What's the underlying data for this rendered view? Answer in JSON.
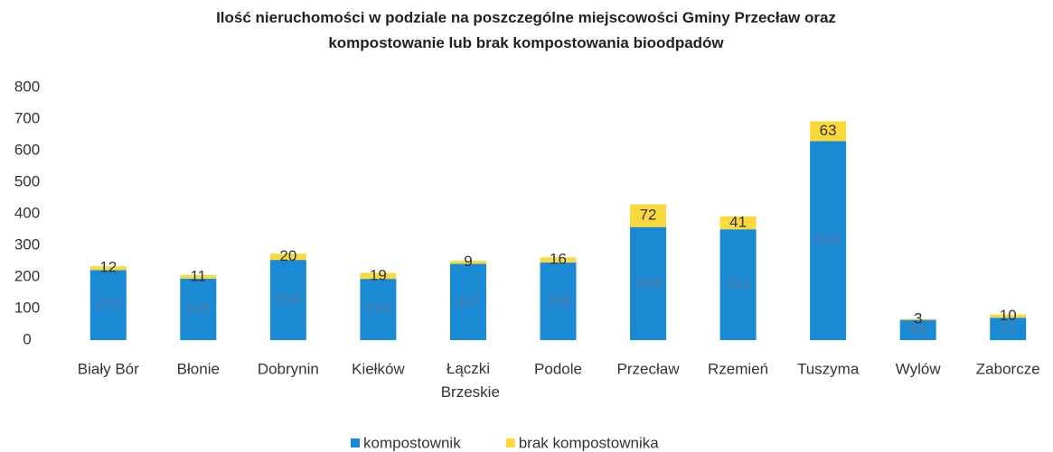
{
  "chart_data": {
    "type": "stacked_bar",
    "title": "Ilość nieruchomości w podziale na poszczególne miejscowości Gminy Przecław oraz kompostowanie lub brak kompostowania bioodpadów",
    "categories": [
      "Biały Bór",
      "Błonie",
      "Dobrynin",
      "Kiełków",
      "Łączki Brzeskie",
      "Podole",
      "Przecław",
      "Rzemień",
      "Tuszyma",
      "Wylów",
      "Zaborcze"
    ],
    "series": [
      {
        "name": "kompostownik",
        "color": "#1a8ad4",
        "values": [
          222,
          195,
          254,
          194,
          242,
          246,
          358,
          351,
          630,
          64,
          71
        ]
      },
      {
        "name": "brak kompostownika",
        "color": "#fbd83c",
        "values": [
          12,
          11,
          20,
          19,
          9,
          16,
          72,
          41,
          63,
          3,
          10
        ]
      }
    ],
    "ylim": [
      0,
      800
    ],
    "yticks": [
      0,
      100,
      200,
      300,
      400,
      500,
      600,
      700,
      800
    ],
    "grid": false,
    "legend": "bottom"
  }
}
